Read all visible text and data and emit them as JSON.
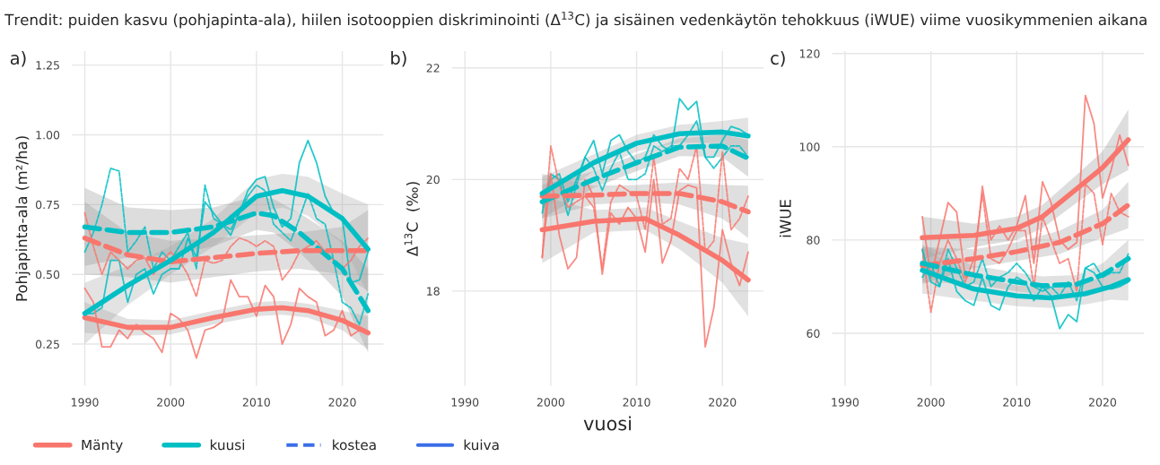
{
  "chart_data": [
    {
      "type": "line",
      "title": "Trendit: puiden kasvu (pohjapinta-ala), hiilen isotooppien diskriminointi (Δ$^{13}$C) ja sisäinen vedenkäytön tehokkuus (iWUE) viime vuosikymmenien aikana",
      "ylabel": "Pohjapinta-ala (m²/ha)",
      "annotations": [
        "a)",
        "kostea",
        "kuiva"
      ],
      "legend": "bottom",
      "grid": true,
      "xlim": [
        1988.5,
        2024.8
      ],
      "xticks": [
        1990,
        2000,
        2010,
        2020
      ],
      "ylim": [
        0.1,
        1.3
      ],
      "yticks": [
        {
          "value": 0.25,
          "label": "0.25"
        },
        {
          "value": 0.5,
          "label": "0.50"
        },
        {
          "value": 0.75,
          "label": "0.75"
        },
        {
          "value": 1.0,
          "label": "1.00"
        },
        {
          "value": 1.25,
          "label": "1.25"
        }
      ],
      "series": [
        {
          "color": "#00bfc4",
          "line_style": "dotted",
          "x": [
            1990,
            1991,
            1992,
            1993,
            1994,
            1995,
            1996,
            1997,
            1998,
            1999,
            2000,
            2001,
            2002,
            2003,
            2004,
            2005,
            2006,
            2007,
            2008,
            2009,
            2010,
            2011,
            2012,
            2013,
            2014,
            2015,
            2016,
            2017,
            2018,
            2019,
            2020,
            2021,
            2022,
            2023
          ],
          "values": [
            0.58,
            0.65,
            0.75,
            0.88,
            0.87,
            0.58,
            0.62,
            0.67,
            0.52,
            0.58,
            0.55,
            0.6,
            0.65,
            0.52,
            0.82,
            0.7,
            0.68,
            0.66,
            0.72,
            0.78,
            0.82,
            0.8,
            0.68,
            0.65,
            0.62,
            0.7,
            0.79,
            0.7,
            0.68,
            0.55,
            0.4,
            0.38,
            0.32,
            0.43
          ]
        },
        {
          "color": "#00bfc4",
          "line_style": "solid",
          "x": [
            1990,
            1991,
            1992,
            1993,
            1994,
            1995,
            1996,
            1997,
            1998,
            1999,
            2000,
            2001,
            2002,
            2003,
            2004,
            2005,
            2006,
            2007,
            2008,
            2009,
            2010,
            2011,
            2012,
            2013,
            2014,
            2015,
            2016,
            2017,
            2018,
            2019,
            2020,
            2021,
            2022,
            2023
          ],
          "values": [
            0.36,
            0.36,
            0.38,
            0.55,
            0.55,
            0.4,
            0.5,
            0.52,
            0.43,
            0.5,
            0.52,
            0.52,
            0.63,
            0.56,
            0.76,
            0.72,
            0.68,
            0.64,
            0.72,
            0.8,
            0.84,
            0.85,
            0.74,
            0.67,
            0.7,
            0.9,
            0.98,
            0.9,
            0.78,
            0.72,
            0.7,
            0.47,
            0.48,
            0.58
          ]
        },
        {
          "color": "#f8766d",
          "line_style": "dotted",
          "x": [
            1990,
            1991,
            1992,
            1993,
            1994,
            1995,
            1996,
            1997,
            1998,
            1999,
            2000,
            2001,
            2002,
            2003,
            2004,
            2005,
            2006,
            2007,
            2008,
            2009,
            2010,
            2011,
            2012,
            2013,
            2014,
            2015,
            2016,
            2017,
            2018,
            2019,
            2020,
            2021,
            2022,
            2023
          ],
          "values": [
            0.72,
            0.6,
            0.5,
            0.58,
            0.55,
            0.52,
            0.55,
            0.56,
            0.5,
            0.55,
            0.58,
            0.55,
            0.5,
            0.42,
            0.55,
            0.54,
            0.55,
            0.6,
            0.63,
            0.62,
            0.6,
            0.62,
            0.6,
            0.48,
            0.52,
            0.58,
            0.6,
            0.62,
            0.58,
            0.55,
            0.52,
            0.55,
            0.6,
            0.63
          ]
        },
        {
          "color": "#f8766d",
          "line_style": "solid",
          "x": [
            1990,
            1991,
            1992,
            1993,
            1994,
            1995,
            1996,
            1997,
            1998,
            1999,
            2000,
            2001,
            2002,
            2003,
            2004,
            2005,
            2006,
            2007,
            2008,
            2009,
            2010,
            2011,
            2012,
            2013,
            2014,
            2015,
            2016,
            2017,
            2018,
            2019,
            2020,
            2021,
            2022,
            2023
          ],
          "values": [
            0.45,
            0.4,
            0.24,
            0.24,
            0.3,
            0.27,
            0.32,
            0.29,
            0.27,
            0.22,
            0.36,
            0.34,
            0.3,
            0.2,
            0.3,
            0.31,
            0.33,
            0.48,
            0.42,
            0.42,
            0.35,
            0.46,
            0.42,
            0.25,
            0.32,
            0.45,
            0.42,
            0.4,
            0.28,
            0.3,
            0.37,
            0.28,
            0.3,
            0.29
          ]
        },
        {
          "color": "#00bfc4",
          "line_style": "dashed",
          "x": [
            1990,
            1995,
            2000,
            2005,
            2010,
            2012,
            2015,
            2020,
            2023
          ],
          "values": [
            0.67,
            0.65,
            0.65,
            0.67,
            0.72,
            0.71,
            0.65,
            0.52,
            0.37
          ],
          "lower": [
            0.53,
            0.56,
            0.57,
            0.6,
            0.66,
            0.65,
            0.58,
            0.42,
            0.22
          ],
          "upper": [
            0.81,
            0.74,
            0.73,
            0.74,
            0.78,
            0.77,
            0.72,
            0.62,
            0.52
          ]
        },
        {
          "color": "#f8766d",
          "line_style": "dashed",
          "x": [
            1990,
            1995,
            2000,
            2005,
            2010,
            2015,
            2020,
            2023
          ],
          "values": [
            0.63,
            0.57,
            0.545,
            0.56,
            0.575,
            0.585,
            0.585,
            0.585
          ],
          "lower": [
            0.5,
            0.49,
            0.47,
            0.49,
            0.51,
            0.52,
            0.5,
            0.44
          ],
          "upper": [
            0.76,
            0.65,
            0.62,
            0.63,
            0.64,
            0.65,
            0.67,
            0.73
          ]
        },
        {
          "name": "Mänty",
          "color": "#f8766d",
          "line_style": "solid",
          "x": [
            1990,
            1995,
            2000,
            2005,
            2010,
            2013,
            2016,
            2020,
            2023
          ],
          "values": [
            0.345,
            0.31,
            0.31,
            0.345,
            0.375,
            0.38,
            0.37,
            0.335,
            0.29
          ],
          "lower": [
            0.29,
            0.28,
            0.285,
            0.32,
            0.35,
            0.355,
            0.345,
            0.3,
            0.23
          ],
          "upper": [
            0.4,
            0.34,
            0.335,
            0.37,
            0.4,
            0.405,
            0.395,
            0.37,
            0.35
          ]
        },
        {
          "name": "kuusi",
          "color": "#00bfc4",
          "line_style": "solid",
          "x": [
            1990,
            1995,
            2000,
            2005,
            2010,
            2013,
            2016,
            2020,
            2023
          ],
          "values": [
            0.36,
            0.46,
            0.55,
            0.65,
            0.78,
            0.8,
            0.78,
            0.7,
            0.59
          ],
          "lower": [
            0.25,
            0.39,
            0.5,
            0.6,
            0.72,
            0.74,
            0.71,
            0.61,
            0.43
          ],
          "upper": [
            0.47,
            0.53,
            0.6,
            0.7,
            0.84,
            0.86,
            0.85,
            0.79,
            0.75
          ]
        }
      ]
    },
    {
      "type": "line",
      "xlabel": "vuosi",
      "ylabel": "Δ$^{13}$C  (‰)",
      "annotations": [
        "b)"
      ],
      "grid": true,
      "xlim": [
        1988.5,
        2024.8
      ],
      "xticks": [
        1990,
        2000,
        2010,
        2020
      ],
      "ylim": [
        16.3,
        22.3
      ],
      "yticks": [
        18,
        20,
        22
      ],
      "series": [
        {
          "color": "#00bfc4",
          "line_style": "dotted",
          "x": [
            1999,
            2000,
            2001,
            2002,
            2003,
            2004,
            2005,
            2006,
            2007,
            2008,
            2009,
            2010,
            2011,
            2012,
            2013,
            2014,
            2015,
            2016,
            2017,
            2018,
            2019,
            2020,
            2021,
            2022,
            2023
          ],
          "values": [
            19.4,
            20.1,
            20.0,
            19.35,
            19.9,
            20.4,
            20.2,
            19.8,
            20.2,
            20.5,
            20.0,
            20.0,
            20.1,
            20.6,
            20.5,
            20.6,
            20.6,
            20.8,
            21.05,
            20.4,
            20.2,
            20.4,
            20.6,
            20.6,
            20.4
          ]
        },
        {
          "color": "#00bfc4",
          "line_style": "solid",
          "x": [
            1999,
            2000,
            2001,
            2002,
            2003,
            2004,
            2005,
            2006,
            2007,
            2008,
            2009,
            2010,
            2011,
            2012,
            2013,
            2014,
            2015,
            2016,
            2017,
            2018,
            2019,
            2020,
            2021,
            2022,
            2023
          ],
          "values": [
            19.6,
            20.0,
            20.1,
            19.6,
            20.0,
            20.4,
            20.7,
            20.1,
            20.7,
            20.8,
            20.5,
            20.3,
            20.4,
            20.8,
            20.6,
            20.5,
            21.45,
            21.25,
            21.4,
            20.4,
            20.4,
            20.7,
            20.95,
            20.9,
            20.8
          ]
        },
        {
          "color": "#f8766d",
          "line_style": "dotted",
          "x": [
            1999,
            2000,
            2001,
            2002,
            2003,
            2004,
            2005,
            2006,
            2007,
            2008,
            2009,
            2010,
            2011,
            2012,
            2013,
            2014,
            2015,
            2016,
            2017,
            2018,
            2019,
            2020,
            2021,
            2022,
            2023
          ],
          "values": [
            18.6,
            20.6,
            19.9,
            19.5,
            19.6,
            19.7,
            19.5,
            18.4,
            19.6,
            19.9,
            19.8,
            19.7,
            19.1,
            20.4,
            19.2,
            19.3,
            20.2,
            20.0,
            20.6,
            18.7,
            18.9,
            20.5,
            19.1,
            19.3,
            19.7
          ]
        },
        {
          "color": "#f8766d",
          "line_style": "solid",
          "x": [
            1999,
            2000,
            2001,
            2002,
            2003,
            2004,
            2005,
            2006,
            2007,
            2008,
            2009,
            2010,
            2011,
            2012,
            2013,
            2014,
            2015,
            2016,
            2017,
            2018,
            2019,
            2020,
            2021,
            2022,
            2023
          ],
          "values": [
            18.6,
            20.1,
            19.0,
            18.4,
            18.6,
            20.0,
            19.7,
            18.3,
            19.4,
            19.2,
            19.5,
            19.3,
            18.7,
            20.0,
            18.5,
            18.9,
            19.8,
            19.9,
            19.85,
            17.0,
            17.7,
            19.1,
            18.5,
            18.1,
            18.7
          ]
        },
        {
          "color": "#00bfc4",
          "line_style": "dashed",
          "x": [
            1999,
            2005,
            2010,
            2015,
            2020,
            2023
          ],
          "values": [
            19.6,
            20.0,
            20.3,
            20.58,
            20.6,
            20.38
          ],
          "lower": [
            19.3,
            19.85,
            20.15,
            20.42,
            20.4,
            20.05
          ],
          "upper": [
            19.9,
            20.15,
            20.45,
            20.74,
            20.8,
            20.71
          ]
        },
        {
          "color": "#f8766d",
          "line_style": "dashed",
          "x": [
            1999,
            2005,
            2010,
            2015,
            2020,
            2023
          ],
          "values": [
            19.7,
            19.72,
            19.75,
            19.75,
            19.6,
            19.42
          ],
          "lower": [
            19.3,
            19.55,
            19.6,
            19.55,
            19.3,
            18.95
          ],
          "upper": [
            20.1,
            19.89,
            19.9,
            19.95,
            19.9,
            19.89
          ]
        },
        {
          "color": "#f8766d",
          "line_style": "solid",
          "x": [
            1999,
            2005,
            2011,
            2015,
            2020,
            2023
          ],
          "values": [
            19.1,
            19.25,
            19.3,
            19.0,
            18.55,
            18.2
          ],
          "lower": [
            18.5,
            19.05,
            19.1,
            18.75,
            18.15,
            17.55
          ],
          "upper": [
            19.7,
            19.45,
            19.5,
            19.25,
            18.95,
            18.85
          ]
        },
        {
          "color": "#00bfc4",
          "line_style": "solid",
          "x": [
            1999,
            2005,
            2010,
            2015,
            2020,
            2023
          ],
          "values": [
            19.75,
            20.3,
            20.65,
            20.82,
            20.85,
            20.78
          ],
          "lower": [
            19.45,
            20.15,
            20.5,
            20.66,
            20.65,
            20.45
          ],
          "upper": [
            20.05,
            20.45,
            20.8,
            20.98,
            21.05,
            21.11
          ]
        }
      ]
    },
    {
      "type": "line",
      "ylabel": "iWUE",
      "annotations": [
        "c)"
      ],
      "grid": true,
      "xlim": [
        1988.5,
        2024.8
      ],
      "xticks": [
        1990,
        2000,
        2010,
        2020
      ],
      "ylim": [
        48.7,
        120.5
      ],
      "yticks": [
        60,
        80,
        100,
        120
      ],
      "series": [
        {
          "color": "#f8766d",
          "line_style": "dotted",
          "x": [
            1999,
            2000,
            2001,
            2002,
            2003,
            2004,
            2005,
            2006,
            2007,
            2008,
            2009,
            2010,
            2011,
            2012,
            2013,
            2014,
            2015,
            2016,
            2017,
            2018,
            2019,
            2020,
            2021,
            2022,
            2023
          ],
          "values": [
            78,
            64.5,
            75,
            80,
            76,
            71,
            76,
            90,
            76,
            75,
            78,
            82,
            82,
            70,
            85,
            80,
            75,
            76,
            69,
            92,
            90,
            79,
            90,
            86,
            85
          ]
        },
        {
          "color": "#f8766d",
          "line_style": "solid",
          "x": [
            1999,
            2000,
            2001,
            2002,
            2003,
            2004,
            2005,
            2006,
            2007,
            2008,
            2009,
            2010,
            2011,
            2012,
            2013,
            2014,
            2015,
            2016,
            2017,
            2018,
            2019,
            2020,
            2021,
            2022,
            2023
          ],
          "values": [
            85,
            72,
            80,
            88,
            86,
            72,
            73,
            91.5,
            80,
            83,
            80,
            83,
            89.5,
            75,
            92.5,
            88,
            80,
            78,
            79.5,
            111,
            105,
            89,
            95,
            102.5,
            96
          ]
        },
        {
          "color": "#00bfc4",
          "line_style": "dotted",
          "x": [
            1999,
            2000,
            2001,
            2002,
            2003,
            2004,
            2005,
            2006,
            2007,
            2008,
            2009,
            2010,
            2011,
            2012,
            2013,
            2014,
            2015,
            2016,
            2017,
            2018,
            2019,
            2020,
            2021,
            2022,
            2023
          ],
          "values": [
            72,
            75,
            70,
            78,
            74,
            70,
            71,
            76,
            70,
            72,
            73,
            75,
            73,
            70,
            69,
            70,
            68,
            71,
            67,
            74,
            75,
            72,
            73,
            73,
            77
          ]
        },
        {
          "color": "#00bfc4",
          "line_style": "solid",
          "x": [
            1999,
            2000,
            2001,
            2002,
            2003,
            2004,
            2005,
            2006,
            2007,
            2008,
            2009,
            2010,
            2011,
            2012,
            2013,
            2014,
            2015,
            2016,
            2017,
            2018,
            2019,
            2020,
            2021,
            2022,
            2023
          ],
          "values": [
            78,
            71,
            70,
            76,
            69,
            67,
            66,
            72,
            66,
            65,
            70,
            72,
            71,
            67,
            70,
            68,
            61,
            64,
            62.5,
            74,
            73,
            70,
            69.5,
            70,
            71
          ]
        },
        {
          "color": "#f8766d",
          "line_style": "solid",
          "x": [
            1999,
            2005,
            2010,
            2013,
            2017,
            2020,
            2023
          ],
          "values": [
            80.5,
            81,
            82.5,
            85,
            91,
            95.5,
            101.5
          ],
          "lower": [
            76,
            78.5,
            80,
            82.5,
            88,
            92,
            95
          ],
          "upper": [
            85,
            83.5,
            85,
            87.5,
            94,
            99,
            108
          ]
        },
        {
          "color": "#f8766d",
          "line_style": "dashed",
          "x": [
            1999,
            2005,
            2010,
            2015,
            2020,
            2023
          ],
          "values": [
            74.5,
            76,
            77.5,
            79.5,
            83.5,
            87.5
          ],
          "lower": [
            70.5,
            74,
            75.5,
            77,
            80.5,
            82.5
          ],
          "upper": [
            78.5,
            78,
            79.5,
            82,
            86.5,
            92.5
          ]
        },
        {
          "color": "#00bfc4",
          "line_style": "dashed",
          "x": [
            1999,
            2005,
            2010,
            2013,
            2017,
            2020,
            2023
          ],
          "values": [
            75,
            72.5,
            71,
            70.2,
            70.5,
            72.5,
            76
          ],
          "lower": [
            71,
            70.5,
            69,
            68.2,
            68.5,
            70,
            72
          ],
          "upper": [
            79,
            74.5,
            73,
            72.2,
            72.5,
            75,
            80
          ]
        },
        {
          "color": "#00bfc4",
          "line_style": "solid",
          "x": [
            1999,
            2005,
            2010,
            2014,
            2018,
            2021,
            2023
          ],
          "values": [
            73.5,
            69.5,
            68,
            67.6,
            68.5,
            70,
            71.5
          ],
          "lower": [
            68.5,
            67,
            65.8,
            65.4,
            66.2,
            67.2,
            67
          ],
          "upper": [
            78.5,
            72,
            70.2,
            69.8,
            70.8,
            72.8,
            76
          ]
        }
      ]
    }
  ]
}
